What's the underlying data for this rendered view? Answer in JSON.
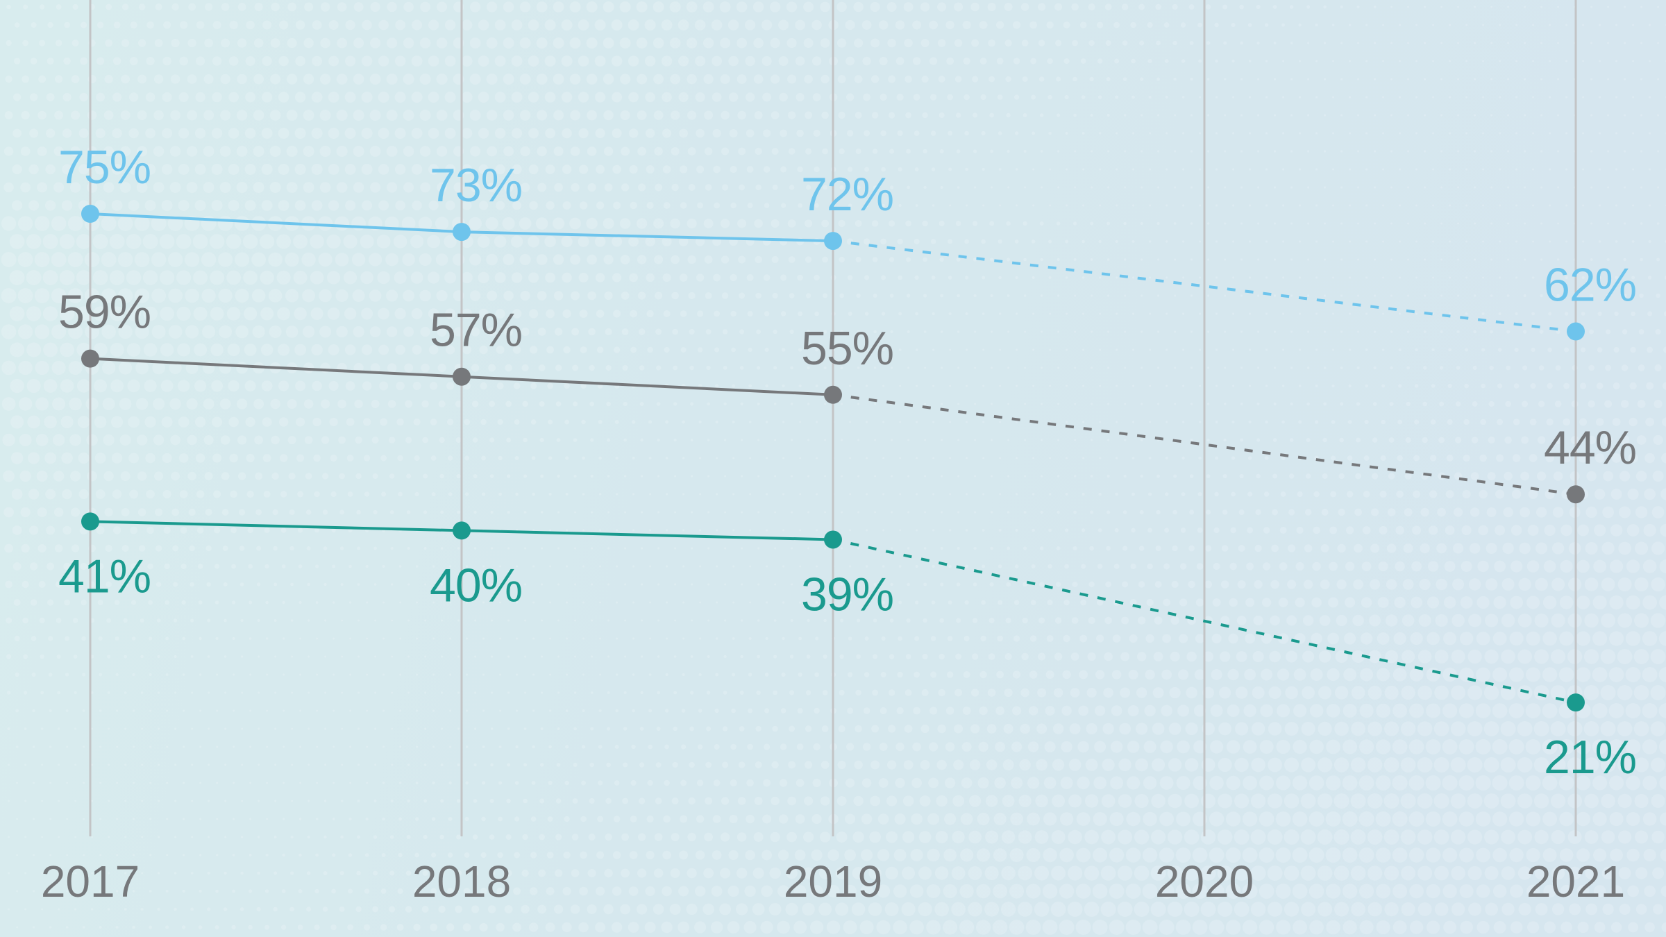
{
  "chart_data": {
    "type": "line",
    "title": "",
    "xlabel": "",
    "ylabel": "",
    "categories": [
      "2017",
      "2018",
      "2019",
      "2020",
      "2021"
    ],
    "grid": "vertical lines at each year",
    "legend": "none",
    "series": [
      {
        "name": "series-blue",
        "color": "#6ec4ec",
        "values": [
          75,
          73,
          72,
          null,
          62
        ],
        "labels": [
          "75%",
          "73%",
          "72%",
          "",
          "62%"
        ],
        "label_position": "above",
        "solid_through": "2019",
        "dashed_to": "2021"
      },
      {
        "name": "series-gray",
        "color": "#76787b",
        "values": [
          59,
          57,
          55,
          null,
          44
        ],
        "labels": [
          "59%",
          "57%",
          "55%",
          "",
          "44%"
        ],
        "label_position": "above",
        "solid_through": "2019",
        "dashed_to": "2021"
      },
      {
        "name": "series-teal",
        "color": "#1a9a8e",
        "values": [
          41,
          40,
          39,
          null,
          21
        ],
        "labels": [
          "41%",
          "40%",
          "39%",
          "",
          "21%"
        ],
        "label_position": "below",
        "solid_through": "2019",
        "dashed_to": "2021"
      }
    ]
  },
  "colors": {
    "background": "#d6e8ee",
    "gridline": "#c3c4c6",
    "axis_text": "#76787b"
  }
}
